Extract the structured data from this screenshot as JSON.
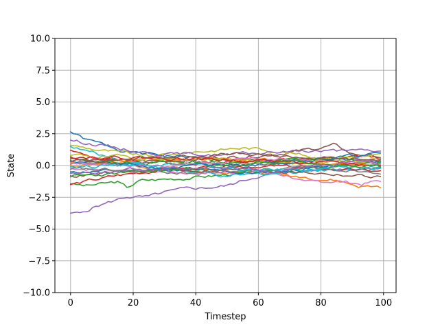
{
  "chart_data": {
    "type": "line",
    "title": "",
    "xlabel": "Timestep",
    "ylabel": "State",
    "xlim": [
      -5,
      104
    ],
    "ylim": [
      -10,
      10
    ],
    "xticks": [
      0,
      20,
      40,
      60,
      80,
      100
    ],
    "yticks": [
      -10,
      -7.5,
      -5,
      -2.5,
      0,
      2.5,
      5,
      7.5,
      10
    ],
    "xtick_labels": [
      "0",
      "20",
      "40",
      "60",
      "80",
      "100"
    ],
    "ytick_labels": [
      "−10.0",
      "−7.5",
      "−5.0",
      "−2.5",
      "0.0",
      "2.5",
      "5.0",
      "7.5",
      "10.0"
    ],
    "grid": true,
    "legend": "none",
    "n_timesteps": 100,
    "palette": [
      "#1f77b4",
      "#ff7f0e",
      "#2ca02c",
      "#d62728",
      "#9467bd",
      "#8c564b",
      "#e377c2",
      "#7f7f7f",
      "#bcbd22",
      "#17becf"
    ],
    "series": [
      {
        "color": "#1f77b4",
        "knots": [
          [
            0,
            2.65
          ],
          [
            5,
            2.0
          ],
          [
            20,
            1.0
          ],
          [
            40,
            0.6
          ],
          [
            60,
            0.3
          ],
          [
            80,
            0.3
          ],
          [
            99,
            0.4
          ]
        ]
      },
      {
        "color": "#ff7f0e",
        "knots": [
          [
            0,
            0.3
          ],
          [
            20,
            0.0
          ],
          [
            40,
            -0.3
          ],
          [
            60,
            -0.5
          ],
          [
            75,
            -0.9
          ],
          [
            85,
            -1.2
          ],
          [
            92,
            -1.65
          ],
          [
            99,
            -1.7
          ]
        ]
      },
      {
        "color": "#2ca02c",
        "knots": [
          [
            0,
            -1.45
          ],
          [
            5,
            -1.6
          ],
          [
            15,
            -1.3
          ],
          [
            18,
            -1.75
          ],
          [
            22,
            -1.2
          ],
          [
            40,
            -0.9
          ],
          [
            60,
            -0.5
          ],
          [
            80,
            -0.2
          ],
          [
            99,
            0.2
          ]
        ]
      },
      {
        "color": "#d62728",
        "knots": [
          [
            0,
            1.2
          ],
          [
            10,
            0.5
          ],
          [
            30,
            0.2
          ],
          [
            50,
            0.3
          ],
          [
            70,
            0.5
          ],
          [
            90,
            0.7
          ],
          [
            99,
            0.6
          ]
        ]
      },
      {
        "color": "#9467bd",
        "knots": [
          [
            0,
            -3.75
          ],
          [
            3,
            -3.8
          ],
          [
            8,
            -3.2
          ],
          [
            15,
            -2.7
          ],
          [
            18,
            -2.45
          ],
          [
            25,
            -2.5
          ],
          [
            30,
            -2.15
          ],
          [
            38,
            -1.85
          ],
          [
            50,
            -1.6
          ],
          [
            55,
            -1.2
          ],
          [
            60,
            -0.8
          ],
          [
            70,
            -0.5
          ],
          [
            80,
            -0.35
          ],
          [
            90,
            -0.2
          ],
          [
            99,
            -0.1
          ]
        ]
      },
      {
        "color": "#8c564b",
        "knots": [
          [
            0,
            0.6
          ],
          [
            20,
            0.3
          ],
          [
            40,
            0.5
          ],
          [
            60,
            0.8
          ],
          [
            75,
            1.2
          ],
          [
            84,
            1.6
          ],
          [
            90,
            0.9
          ],
          [
            99,
            0.7
          ]
        ]
      },
      {
        "color": "#e377c2",
        "knots": [
          [
            0,
            -0.2
          ],
          [
            20,
            -0.4
          ],
          [
            40,
            -0.6
          ],
          [
            60,
            -0.5
          ],
          [
            70,
            -0.8
          ],
          [
            75,
            -1.4
          ],
          [
            85,
            -1.2
          ],
          [
            93,
            -1.45
          ],
          [
            99,
            -1.2
          ]
        ]
      },
      {
        "color": "#7f7f7f",
        "knots": [
          [
            0,
            0.1
          ],
          [
            30,
            0.3
          ],
          [
            60,
            0.1
          ],
          [
            99,
            0.0
          ]
        ]
      },
      {
        "color": "#bcbd22",
        "knots": [
          [
            0,
            1.6
          ],
          [
            10,
            1.2
          ],
          [
            25,
            0.7
          ],
          [
            40,
            1.1
          ],
          [
            55,
            1.4
          ],
          [
            65,
            1.2
          ],
          [
            80,
            0.6
          ],
          [
            99,
            0.8
          ]
        ]
      },
      {
        "color": "#17becf",
        "knots": [
          [
            0,
            1.5
          ],
          [
            10,
            0.8
          ],
          [
            30,
            -0.2
          ],
          [
            50,
            -0.9
          ],
          [
            60,
            -0.7
          ],
          [
            80,
            -0.3
          ],
          [
            99,
            -0.2
          ]
        ]
      },
      {
        "color": "#1f77b4",
        "knots": [
          [
            0,
            -0.5
          ],
          [
            30,
            -0.3
          ],
          [
            60,
            -0.6
          ],
          [
            80,
            -0.1
          ],
          [
            99,
            0.3
          ]
        ]
      },
      {
        "color": "#ff7f0e",
        "knots": [
          [
            0,
            0.0
          ],
          [
            25,
            0.4
          ],
          [
            50,
            0.6
          ],
          [
            75,
            0.2
          ],
          [
            99,
            0.1
          ]
        ]
      },
      {
        "color": "#2ca02c",
        "knots": [
          [
            0,
            0.5
          ],
          [
            20,
            0.2
          ],
          [
            50,
            0.3
          ],
          [
            80,
            0.5
          ],
          [
            99,
            0.3
          ]
        ]
      },
      {
        "color": "#d62728",
        "knots": [
          [
            0,
            -1.5
          ],
          [
            15,
            -0.8
          ],
          [
            30,
            -0.3
          ],
          [
            60,
            0.0
          ],
          [
            99,
            -0.5
          ]
        ]
      },
      {
        "color": "#9467bd",
        "knots": [
          [
            0,
            2.0
          ],
          [
            10,
            1.6
          ],
          [
            25,
            1.0
          ],
          [
            50,
            0.8
          ],
          [
            75,
            1.2
          ],
          [
            99,
            1.1
          ]
        ]
      },
      {
        "color": "#8c564b",
        "knots": [
          [
            0,
            -0.8
          ],
          [
            30,
            -0.4
          ],
          [
            60,
            -0.3
          ],
          [
            80,
            -0.6
          ],
          [
            99,
            -0.9
          ]
        ]
      },
      {
        "color": "#e377c2",
        "knots": [
          [
            0,
            0.2
          ],
          [
            30,
            0.0
          ],
          [
            60,
            0.5
          ],
          [
            99,
            0.2
          ]
        ]
      },
      {
        "color": "#7f7f7f",
        "knots": [
          [
            0,
            -0.3
          ],
          [
            40,
            -0.6
          ],
          [
            70,
            -0.2
          ],
          [
            99,
            -0.4
          ]
        ]
      },
      {
        "color": "#bcbd22",
        "knots": [
          [
            0,
            0.8
          ],
          [
            40,
            0.5
          ],
          [
            70,
            0.2
          ],
          [
            99,
            0.5
          ]
        ]
      },
      {
        "color": "#17becf",
        "knots": [
          [
            0,
            -0.1
          ],
          [
            30,
            0.2
          ],
          [
            60,
            -0.4
          ],
          [
            99,
            -0.1
          ]
        ]
      },
      {
        "color": "#1f77b4",
        "knots": [
          [
            0,
            0.4
          ],
          [
            30,
            -0.2
          ],
          [
            60,
            0.2
          ],
          [
            99,
            0.9
          ]
        ]
      },
      {
        "color": "#d62728",
        "knots": [
          [
            0,
            0.7
          ],
          [
            30,
            0.6
          ],
          [
            60,
            0.4
          ],
          [
            99,
            0.0
          ]
        ]
      },
      {
        "color": "#2ca02c",
        "knots": [
          [
            0,
            -0.9
          ],
          [
            40,
            -0.2
          ],
          [
            70,
            0.3
          ],
          [
            99,
            -0.2
          ]
        ]
      },
      {
        "color": "#8c564b",
        "knots": [
          [
            0,
            0.3
          ],
          [
            50,
            0.9
          ],
          [
            99,
            0.4
          ]
        ]
      },
      {
        "color": "#9467bd",
        "knots": [
          [
            0,
            -0.6
          ],
          [
            40,
            -0.1
          ],
          [
            70,
            -0.4
          ],
          [
            99,
            0.6
          ]
        ]
      }
    ]
  }
}
